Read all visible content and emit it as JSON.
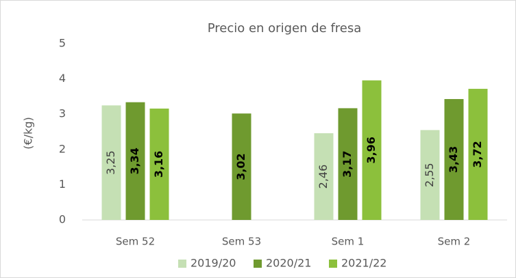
{
  "chart_data": {
    "type": "bar",
    "title": "Precio en origen de fresa",
    "y_label": "(€/kg)",
    "categories": [
      "Sem 52",
      "Sem 53",
      "Sem 1",
      "Sem 2"
    ],
    "series": [
      {
        "name": "2019/20",
        "color": "#c5e0b4",
        "values": [
          3.25,
          null,
          2.46,
          2.55
        ],
        "value_labels": [
          "3,25",
          null,
          "2,46",
          "2,55"
        ]
      },
      {
        "name": "2020/21",
        "color": "#6f9a2f",
        "values": [
          3.34,
          3.02,
          3.17,
          3.43
        ],
        "value_labels": [
          "3,34",
          "3,02",
          "3,17",
          "3,43"
        ]
      },
      {
        "name": "2021/22",
        "color": "#8cc03c",
        "values": [
          3.16,
          null,
          3.96,
          3.72
        ],
        "value_labels": [
          "3,16",
          null,
          "3,96",
          "3,72"
        ]
      }
    ],
    "ylim": [
      0,
      5
    ],
    "yticks": [
      0,
      1,
      2,
      3,
      4,
      5
    ],
    "grid": false,
    "legend": "bottom"
  }
}
